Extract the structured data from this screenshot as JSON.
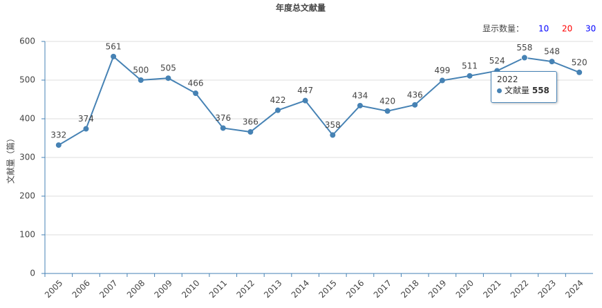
{
  "chart_data": {
    "type": "line",
    "title": "年度总文献量",
    "y_label": "文献量（篇）",
    "controls": {
      "label": "显示数量：",
      "options": [
        {
          "text": "10",
          "color": "#0000ff"
        },
        {
          "text": "20",
          "color": "#ff0000"
        },
        {
          "text": "30",
          "color": "#0000ff"
        }
      ]
    },
    "categories": [
      "2005",
      "2006",
      "2007",
      "2008",
      "2009",
      "2010",
      "2011",
      "2012",
      "2013",
      "2014",
      "2015",
      "2016",
      "2017",
      "2018",
      "2019",
      "2020",
      "2021",
      "2022",
      "2023",
      "2024"
    ],
    "series": [
      {
        "name": "文献量",
        "color": "#4682b4",
        "values": [
          332,
          374,
          561,
          500,
          505,
          466,
          376,
          366,
          422,
          447,
          358,
          434,
          420,
          436,
          499,
          511,
          524,
          558,
          548,
          520
        ]
      }
    ],
    "ylim": [
      0,
      600
    ],
    "yticks": [
      0,
      100,
      200,
      300,
      400,
      500,
      600
    ],
    "grid": true,
    "tooltip_index": 17
  }
}
